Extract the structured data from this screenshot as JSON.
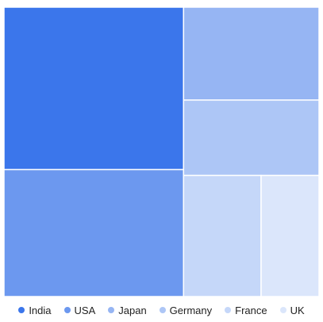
{
  "chart_data": {
    "type": "treemap",
    "title": "",
    "items": [
      {
        "name": "India",
        "value": 32.0,
        "color": "#3b76eb"
      },
      {
        "name": "USA",
        "value": 25.0,
        "color": "#6c98ef"
      },
      {
        "name": "Japan",
        "value": 13.8,
        "color": "#96b5f3"
      },
      {
        "name": "Germany",
        "value": 11.2,
        "color": "#adc6f6"
      },
      {
        "name": "France",
        "value": 10.3,
        "color": "#c5d7f9"
      },
      {
        "name": "UK",
        "value": 7.7,
        "color": "#dbe6fb"
      }
    ],
    "legend": {
      "position": "bottom"
    }
  }
}
